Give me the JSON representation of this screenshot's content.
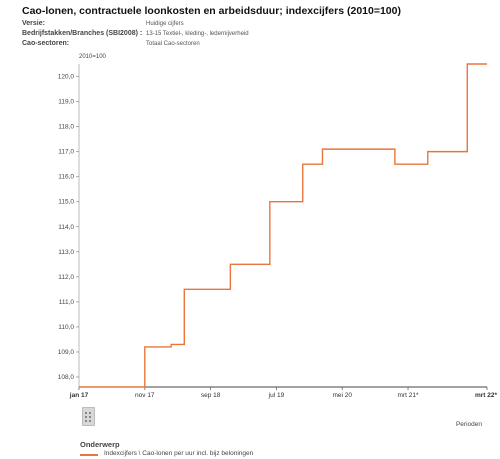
{
  "header": {
    "title": "Cao-lonen, contractuele loonkosten en arbeidsduur; indexcijfers (2010=100)",
    "meta": [
      {
        "label": "Versie:",
        "value": "Huidige cijfers"
      },
      {
        "label": "Bedrijfstakken/Branches (SBI2008) :",
        "value": "13-15 Textiel-, kleding-, ledernijverheid"
      },
      {
        "label": "Cao-sectoren:",
        "value": "Totaal Cao-sectoren"
      }
    ]
  },
  "chart_data": {
    "type": "line",
    "title": "",
    "unit_label": "2010=100",
    "xlabel": "Perioden",
    "ylabel": "",
    "x_tick_labels": [
      "jan 17",
      "nov 17",
      "sep 18",
      "jul 19",
      "mei 20",
      "mrt 21*",
      "mrt 22*"
    ],
    "y_tick_labels": [
      "108,0",
      "109,0",
      "110,0",
      "111,0",
      "112,0",
      "113,0",
      "114,0",
      "115,0",
      "116,0",
      "117,0",
      "118,0",
      "119,0",
      "120,0"
    ],
    "ylim": [
      107.6,
      120.5
    ],
    "grid": false,
    "series": [
      {
        "name": "Indexcijfers \\ Cao-lonen per uur incl. bijz beloningen",
        "color": "#e8763c",
        "x": [
          "2017-01",
          "2017-02",
          "2017-03",
          "2017-04",
          "2017-05",
          "2017-06",
          "2017-07",
          "2017-08",
          "2017-09",
          "2017-10",
          "2017-11",
          "2017-12",
          "2018-01",
          "2018-02",
          "2018-03",
          "2018-04",
          "2018-05",
          "2018-06",
          "2018-07",
          "2018-08",
          "2018-09",
          "2018-10",
          "2018-11",
          "2018-12",
          "2019-01",
          "2019-02",
          "2019-03",
          "2019-04",
          "2019-05",
          "2019-06",
          "2019-07",
          "2019-08",
          "2019-09",
          "2019-10",
          "2019-11",
          "2019-12",
          "2020-01",
          "2020-02",
          "2020-03",
          "2020-04",
          "2020-05",
          "2020-06",
          "2020-07",
          "2020-08",
          "2020-09",
          "2020-10",
          "2020-11",
          "2020-12",
          "2021-01",
          "2021-02",
          "2021-03",
          "2021-04",
          "2021-05",
          "2021-06",
          "2021-07",
          "2021-08",
          "2021-09",
          "2021-10",
          "2021-11",
          "2021-12",
          "2022-01",
          "2022-02",
          "2022-03"
        ],
        "values": [
          107.6,
          107.6,
          107.6,
          107.6,
          107.6,
          107.6,
          107.6,
          107.6,
          107.6,
          107.6,
          109.2,
          109.2,
          109.2,
          109.2,
          109.3,
          109.3,
          111.5,
          111.5,
          111.5,
          111.5,
          111.5,
          111.5,
          111.5,
          112.5,
          112.5,
          112.5,
          112.5,
          112.5,
          112.5,
          115.0,
          115.0,
          115.0,
          115.0,
          115.0,
          116.5,
          116.5,
          116.5,
          117.1,
          117.1,
          117.1,
          117.1,
          117.1,
          117.1,
          117.1,
          117.1,
          117.1,
          117.1,
          117.1,
          116.5,
          116.5,
          116.5,
          116.5,
          116.5,
          117.0,
          117.0,
          117.0,
          117.0,
          117.0,
          117.0,
          120.5,
          120.5,
          120.5,
          120.5
        ]
      }
    ]
  },
  "footer": {
    "icon": "calendar-grid-icon",
    "subject_label": "Onderwerp"
  }
}
